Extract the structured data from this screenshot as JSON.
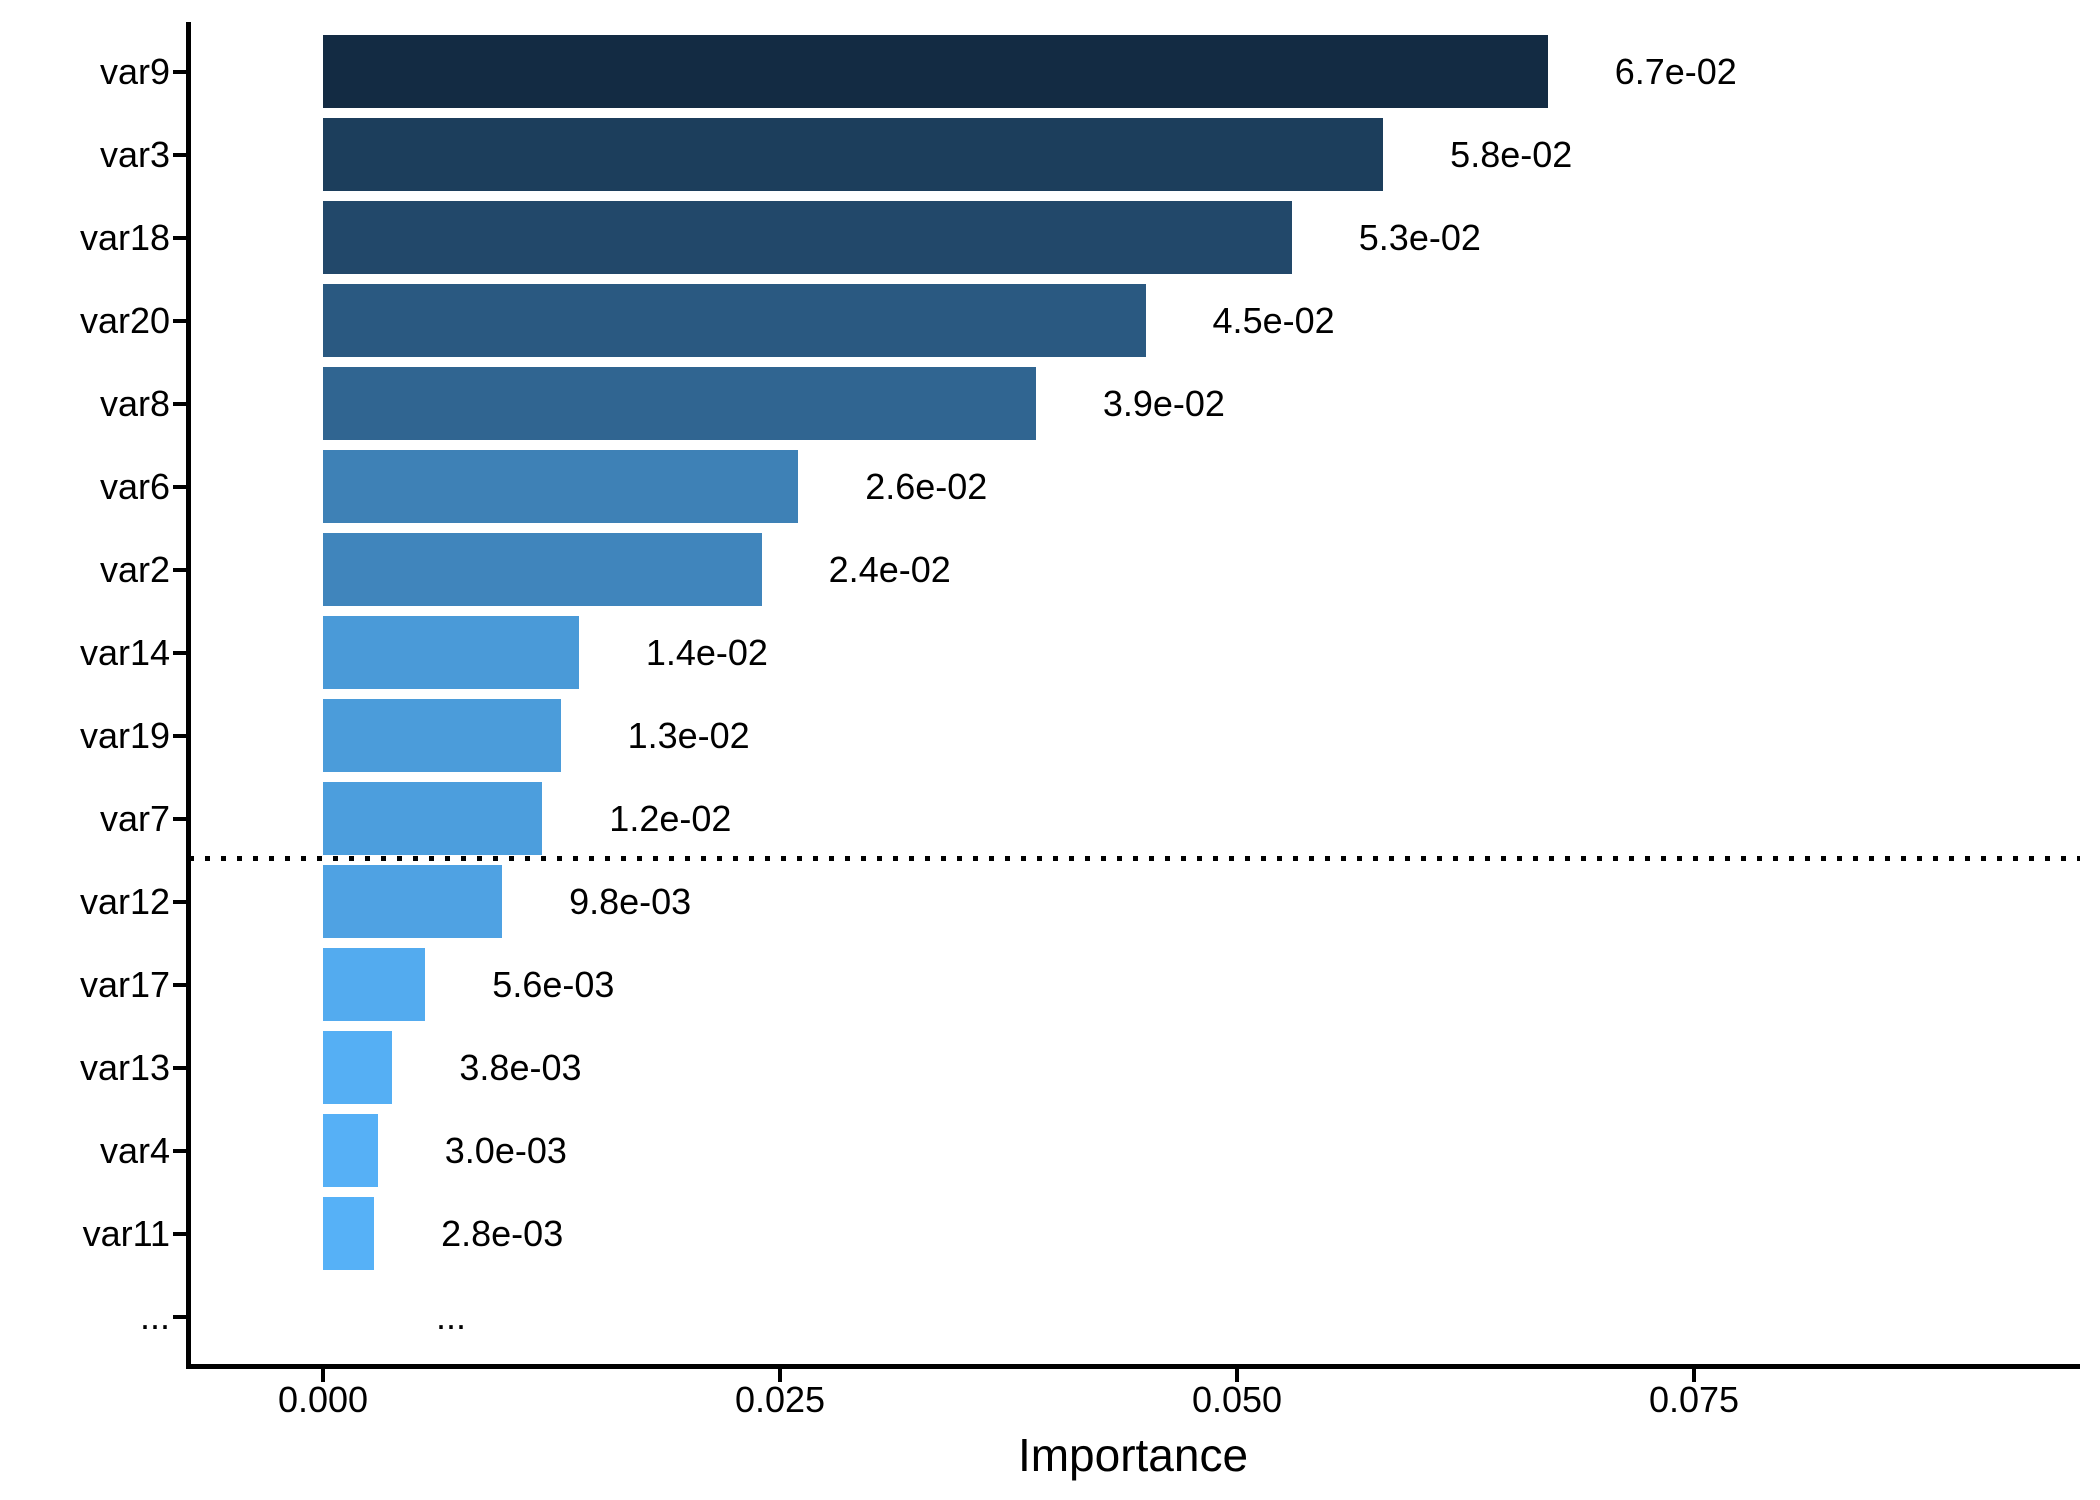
{
  "chart_data": {
    "type": "bar",
    "orientation": "horizontal",
    "xlabel": "Importance",
    "x_axis": {
      "tick_values": [
        0,
        0.025,
        0.05,
        0.075
      ],
      "tick_labels": [
        "0.000",
        "0.025",
        "0.050",
        "0.075"
      ],
      "range": [
        -0.0075,
        0.0961
      ]
    },
    "categories": [
      "var9",
      "var3",
      "var18",
      "var20",
      "var8",
      "var6",
      "var2",
      "var14",
      "var19",
      "var7",
      "var12",
      "var17",
      "var13",
      "var4",
      "var11"
    ],
    "values": [
      0.067,
      0.058,
      0.053,
      0.045,
      0.039,
      0.026,
      0.024,
      0.014,
      0.013,
      0.012,
      0.0098,
      0.0056,
      0.0038,
      0.003,
      0.0028
    ],
    "value_labels": [
      "6.7e-02",
      "5.8e-02",
      "5.3e-02",
      "4.5e-02",
      "3.9e-02",
      "2.6e-02",
      "2.4e-02",
      "1.4e-02",
      "1.3e-02",
      "1.2e-02",
      "9.8e-03",
      "5.6e-03",
      "3.8e-03",
      "3.0e-03",
      "2.8e-03"
    ],
    "bar_colors": [
      "#132B43",
      "#1C3E5C",
      "#22486A",
      "#2A5981",
      "#306591",
      "#3E81B6",
      "#4085BC",
      "#4A9AD8",
      "#4B9CDA",
      "#4C9EDD",
      "#4FA2E3",
      "#53ABEF",
      "#55AFF4",
      "#56B0F6",
      "#56B1F7"
    ],
    "gradient": {
      "low_value_color": "#56B1F7",
      "high_value_color": "#132B43"
    },
    "overflow_row": {
      "category_label": "...",
      "value_label": "..."
    },
    "threshold_line": {
      "style": "dotted",
      "color": "#000000",
      "between_categories": [
        "var7",
        "var12"
      ]
    },
    "grid": "off",
    "legend": "none",
    "text_color": "#000000",
    "background_color": "#FFFFFF"
  }
}
